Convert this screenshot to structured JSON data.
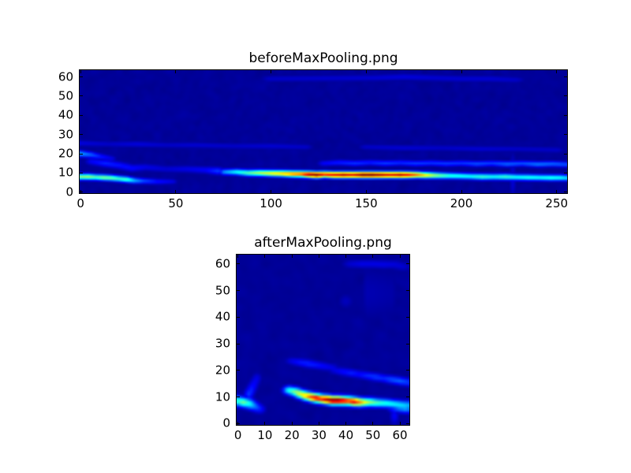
{
  "figure": {
    "background": "#ffffff",
    "plot_background_color": "#000080",
    "colormap": "jet"
  },
  "chart_data": [
    {
      "type": "heatmap",
      "title": "beforeMaxPooling.png",
      "colormap": "jet",
      "grid_cols": 256,
      "grid_rows": 64,
      "xlim": [
        -0.5,
        255.5
      ],
      "ylim": [
        63.5,
        -0.5
      ],
      "xticks": [
        0,
        50,
        100,
        150,
        200,
        250
      ],
      "yticks": [
        0,
        10,
        20,
        30,
        40,
        50,
        60
      ],
      "value_range": [
        0,
        1
      ],
      "noise_amplitude": 0.05,
      "features": [
        {
          "name": "main-energy-band",
          "sigma": [
            2.2,
            1.15
          ],
          "points": [
            [
              76,
              52.5,
              0.28
            ],
            [
              82,
              52.5,
              0.38
            ],
            [
              88,
              53,
              0.45
            ],
            [
              94,
              53,
              0.55
            ],
            [
              100,
              53.2,
              0.62
            ],
            [
              106,
              53.3,
              0.68
            ],
            [
              111,
              53.5,
              0.75
            ],
            [
              116,
              53.6,
              0.8
            ],
            [
              120,
              53.8,
              0.95
            ],
            [
              124,
              54,
              1.0
            ],
            [
              128,
              53.8,
              0.85
            ],
            [
              133,
              54,
              0.9
            ],
            [
              138,
              54,
              0.95
            ],
            [
              143,
              54,
              0.9
            ],
            [
              148,
              54,
              1.0
            ],
            [
              153,
              54,
              1.0
            ],
            [
              158,
              54,
              0.95
            ],
            [
              163,
              54,
              0.9
            ],
            [
              168,
              54,
              0.95
            ],
            [
              173,
              54,
              0.85
            ],
            [
              177,
              54,
              0.75
            ],
            [
              181,
              54.2,
              0.65
            ],
            [
              185,
              54.3,
              0.55
            ],
            [
              189,
              54.4,
              0.48
            ],
            [
              194,
              54.5,
              0.42
            ],
            [
              199,
              54.6,
              0.4
            ],
            [
              205,
              54.8,
              0.38
            ],
            [
              211,
              55,
              0.42
            ],
            [
              217,
              55,
              0.38
            ],
            [
              223,
              55,
              0.42
            ],
            [
              229,
              55.2,
              0.38
            ],
            [
              235,
              55.3,
              0.4
            ],
            [
              241,
              55.4,
              0.38
            ],
            [
              247,
              55.5,
              0.4
            ],
            [
              252,
              55.5,
              0.38
            ],
            [
              255,
              55.6,
              0.34
            ]
          ]
        },
        {
          "name": "left-cyan-streak",
          "sigma": [
            2,
            1.1
          ],
          "points": [
            [
              0,
              55,
              0.5
            ],
            [
              4,
              55,
              0.52
            ],
            [
              8,
              55.2,
              0.45
            ],
            [
              12,
              55.4,
              0.5
            ],
            [
              16,
              55.6,
              0.48
            ],
            [
              20,
              56,
              0.42
            ],
            [
              24,
              56.4,
              0.44
            ],
            [
              28,
              57,
              0.3
            ],
            [
              33,
              57.2,
              0.2
            ],
            [
              40,
              57.5,
              0.14
            ],
            [
              48,
              57.5,
              0.1
            ]
          ]
        },
        {
          "name": "left-upper-diagonal",
          "sigma": [
            2,
            1.2
          ],
          "points": [
            [
              0,
              43,
              0.28
            ],
            [
              5,
              43.5,
              0.22
            ],
            [
              10,
              44.5,
              0.15
            ],
            [
              16,
              45.5,
              0.1
            ]
          ]
        },
        {
          "name": "left-mid-wisps",
          "sigma": [
            2.5,
            1.4
          ],
          "points": [
            [
              6,
              47,
              0.12
            ],
            [
              13,
              48,
              0.16
            ],
            [
              20,
              49,
              0.14
            ],
            [
              27,
              50.5,
              0.13
            ],
            [
              34,
              50,
              0.1
            ],
            [
              45,
              51,
              0.08
            ],
            [
              56,
              51,
              0.1
            ],
            [
              66,
              51.5,
              0.12
            ],
            [
              72,
              52,
              0.18
            ]
          ]
        },
        {
          "name": "upper-wavy-line",
          "sigma": [
            2.5,
            1.1
          ],
          "points": [
            [
              128,
              48,
              0.12
            ],
            [
              136,
              47.6,
              0.15
            ],
            [
              144,
              48,
              0.17
            ],
            [
              152,
              47.6,
              0.15
            ],
            [
              160,
              48,
              0.18
            ],
            [
              168,
              47.7,
              0.16
            ],
            [
              176,
              48.1,
              0.18
            ],
            [
              184,
              47.8,
              0.17
            ],
            [
              192,
              48.2,
              0.18
            ],
            [
              200,
              47.9,
              0.17
            ],
            [
              208,
              48.3,
              0.2
            ],
            [
              216,
              48,
              0.18
            ],
            [
              224,
              48.4,
              0.22
            ],
            [
              232,
              48.1,
              0.2
            ],
            [
              240,
              48.5,
              0.24
            ],
            [
              248,
              48.3,
              0.22
            ],
            [
              255,
              48.6,
              0.2
            ]
          ]
        },
        {
          "name": "faint-band-row38",
          "sigma": [
            3,
            1.2
          ],
          "points": [
            [
              0,
              37.5,
              0.09
            ],
            [
              15,
              38,
              0.07
            ],
            [
              30,
              38,
              0.09
            ],
            [
              45,
              38.5,
              0.07
            ],
            [
              60,
              38.5,
              0.08
            ],
            [
              80,
              39,
              0.07
            ],
            [
              100,
              39,
              0.08
            ],
            [
              118,
              39.5,
              0.07
            ]
          ]
        },
        {
          "name": "faint-band-row40-right",
          "sigma": [
            3,
            1.2
          ],
          "points": [
            [
              150,
              39.5,
              0.07
            ],
            [
              170,
              40,
              0.08
            ],
            [
              190,
              40,
              0.07
            ],
            [
              210,
              40.5,
              0.08
            ],
            [
              230,
              40.5,
              0.07
            ],
            [
              250,
              41,
              0.07
            ]
          ]
        },
        {
          "name": "top-edge-smudges",
          "sigma": [
            4,
            1.3
          ],
          "points": [
            [
              100,
              4,
              0.07
            ],
            [
              155,
              3.5,
              0.08
            ],
            [
              170,
              3,
              0.09
            ],
            [
              185,
              3.5,
              0.08
            ],
            [
              200,
              4,
              0.08
            ],
            [
              215,
              4,
              0.08
            ],
            [
              228,
              4.5,
              0.07
            ]
          ]
        },
        {
          "name": "faint-vertical-col227",
          "sigma": [
            1.2,
            6
          ],
          "points": [
            [
              227,
              50,
              0.07
            ],
            [
              227,
              58,
              0.08
            ]
          ]
        }
      ]
    },
    {
      "type": "heatmap",
      "title": "afterMaxPooling.png",
      "colormap": "jet",
      "grid_cols": 64,
      "grid_rows": 64,
      "xlim": [
        -0.5,
        63.5
      ],
      "ylim": [
        63.5,
        -0.5
      ],
      "xticks": [
        0,
        10,
        20,
        30,
        40,
        50,
        60
      ],
      "yticks": [
        0,
        10,
        20,
        30,
        40,
        50,
        60
      ],
      "value_range": [
        0,
        1
      ],
      "noise_amplitude": 0.05,
      "features": [
        {
          "name": "main-energy-arc",
          "sigma": [
            1.6,
            1.15
          ],
          "points": [
            [
              19,
              50.5,
              0.4
            ],
            [
              21,
              51,
              0.5
            ],
            [
              23,
              51.8,
              0.6
            ],
            [
              25,
              52.5,
              0.68
            ],
            [
              27,
              53,
              0.8
            ],
            [
              29,
              53.4,
              0.9
            ],
            [
              31,
              53.8,
              0.85
            ],
            [
              33,
              54,
              0.95
            ],
            [
              35,
              54.3,
              1.0
            ],
            [
              37,
              54.3,
              1.0
            ],
            [
              39,
              54.4,
              0.92
            ],
            [
              41,
              54.5,
              0.85
            ],
            [
              43,
              54.8,
              0.88
            ],
            [
              45,
              55,
              0.75
            ],
            [
              47,
              55,
              0.62
            ],
            [
              49,
              55,
              0.52
            ],
            [
              51,
              55.2,
              0.46
            ],
            [
              53,
              55.3,
              0.42
            ],
            [
              55,
              55.4,
              0.4
            ],
            [
              57,
              55.6,
              0.38
            ],
            [
              59,
              55.8,
              0.36
            ],
            [
              61,
              56,
              0.34
            ],
            [
              63,
              56,
              0.3
            ]
          ]
        },
        {
          "name": "left-edge-blob",
          "sigma": [
            1.6,
            1.3
          ],
          "points": [
            [
              0,
              54.5,
              0.42
            ],
            [
              2,
              55,
              0.48
            ],
            [
              4,
              55.5,
              0.4
            ],
            [
              6,
              56.5,
              0.25
            ],
            [
              8,
              57.5,
              0.15
            ]
          ]
        },
        {
          "name": "left-vertical-wisp",
          "sigma": [
            1.3,
            1.5
          ],
          "points": [
            [
              4,
              52,
              0.18
            ],
            [
              5,
              50,
              0.15
            ],
            [
              6,
              48,
              0.12
            ],
            [
              7,
              46,
              0.1
            ]
          ]
        },
        {
          "name": "upper-diagonal-a",
          "sigma": [
            1.8,
            1.1
          ],
          "points": [
            [
              20,
              39.5,
              0.1
            ],
            [
              23,
              40,
              0.14
            ],
            [
              26,
              40.5,
              0.16
            ],
            [
              29,
              41,
              0.14
            ],
            [
              32,
              41.5,
              0.12
            ],
            [
              35,
              42,
              0.1
            ]
          ]
        },
        {
          "name": "upper-diagonal-b",
          "sigma": [
            1.8,
            1.1
          ],
          "points": [
            [
              36,
              43,
              0.1
            ],
            [
              39,
              43.5,
              0.13
            ],
            [
              42,
              44,
              0.15
            ],
            [
              45,
              44.5,
              0.13
            ],
            [
              48,
              45,
              0.16
            ],
            [
              51,
              45.5,
              0.18
            ],
            [
              54,
              46,
              0.16
            ],
            [
              57,
              46.5,
              0.2
            ],
            [
              60,
              47,
              0.22
            ],
            [
              63,
              47.5,
              0.18
            ]
          ]
        },
        {
          "name": "right-edge-blob",
          "sigma": [
            1.8,
            1.3
          ],
          "points": [
            [
              58,
              57,
              0.2
            ],
            [
              60,
              57,
              0.28
            ],
            [
              62,
              57.2,
              0.3
            ],
            [
              63,
              57.3,
              0.26
            ]
          ]
        },
        {
          "name": "right-vertical-wisp",
          "sigma": [
            1.2,
            2.5
          ],
          "points": [
            [
              58,
              60,
              0.12
            ]
          ]
        },
        {
          "name": "top-edge-smudge",
          "sigma": [
            2.5,
            1.2
          ],
          "points": [
            [
              42,
              3,
              0.08
            ],
            [
              46,
              3,
              0.1
            ],
            [
              50,
              3,
              0.1
            ],
            [
              54,
              3.2,
              0.1
            ],
            [
              58,
              3.2,
              0.09
            ],
            [
              61,
              4,
              0.08
            ]
          ]
        },
        {
          "name": "faint-vertical-bands",
          "sigma": [
            1.5,
            8
          ],
          "points": [
            [
              48,
              14,
              0.05
            ],
            [
              57,
              14,
              0.04
            ]
          ]
        },
        {
          "name": "mid-speck",
          "sigma": [
            2,
            2
          ],
          "points": [
            [
              40,
              17,
              0.06
            ]
          ]
        }
      ]
    }
  ]
}
